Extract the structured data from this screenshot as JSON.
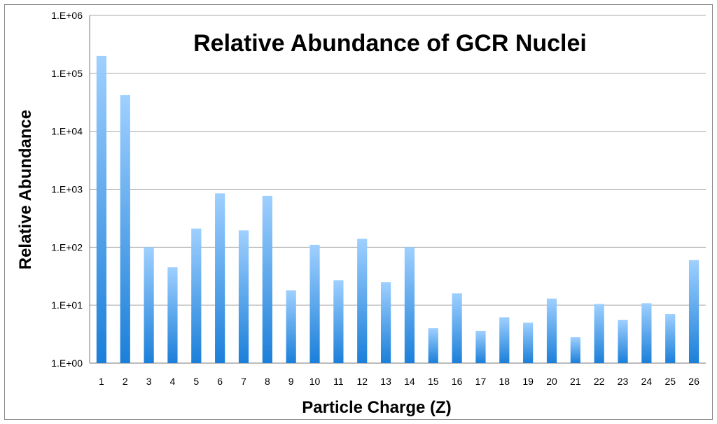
{
  "chart_data": {
    "type": "bar",
    "title": "Relative Abundance of GCR Nuclei",
    "xlabel": "Particle Charge (Z)",
    "ylabel": "Relative Abundance",
    "y_scale": "log",
    "ylim": [
      1,
      1000000
    ],
    "y_tick_labels": [
      "1.E+00",
      "1.E+01",
      "1.E+02",
      "1.E+03",
      "1.E+04",
      "1.E+05",
      "1.E+06"
    ],
    "grid": true,
    "bar_color": "#4aa3ee",
    "categories": [
      "1",
      "2",
      "3",
      "4",
      "5",
      "6",
      "7",
      "8",
      "9",
      "10",
      "11",
      "12",
      "13",
      "14",
      "15",
      "16",
      "17",
      "18",
      "19",
      "20",
      "21",
      "22",
      "23",
      "24",
      "25",
      "26"
    ],
    "values": [
      200000,
      42000,
      100,
      45,
      210,
      850,
      195,
      770,
      18,
      110,
      27,
      140,
      25,
      100,
      4,
      16,
      3.6,
      6.2,
      5,
      13,
      2.8,
      10.5,
      5.6,
      10.8,
      7,
      60
    ]
  }
}
